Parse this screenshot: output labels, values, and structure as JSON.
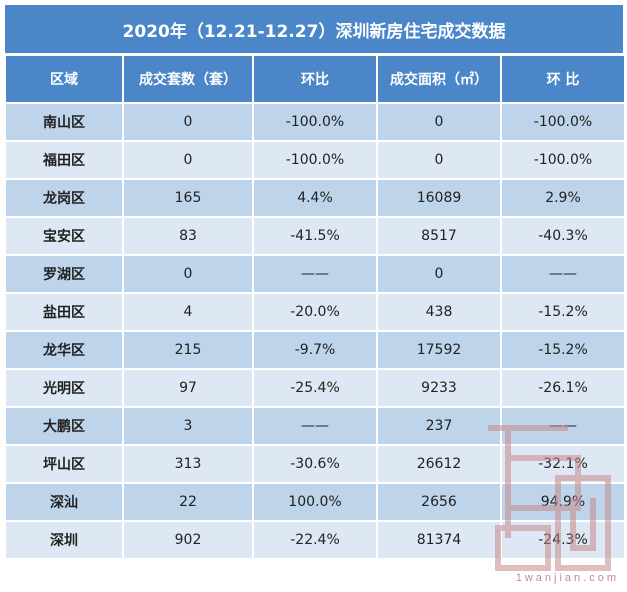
{
  "title": "2020年（12.21-12.27）深圳新房住宅成交数据",
  "columns": [
    "区域",
    "成交套数（套）",
    "环比",
    "成交面积（㎡）",
    "环 比"
  ],
  "rows": [
    [
      "南山区",
      "0",
      "-100.0%",
      "0",
      "-100.0%"
    ],
    [
      "福田区",
      "0",
      "-100.0%",
      "0",
      "-100.0%"
    ],
    [
      "龙岗区",
      "165",
      "4.4%",
      "16089",
      "2.9%"
    ],
    [
      "宝安区",
      "83",
      "-41.5%",
      "8517",
      "-40.3%"
    ],
    [
      "罗湖区",
      "0",
      "——",
      "0",
      "——"
    ],
    [
      "盐田区",
      "4",
      "-20.0%",
      "438",
      "-15.2%"
    ],
    [
      "龙华区",
      "215",
      "-9.7%",
      "17592",
      "-15.2%"
    ],
    [
      "光明区",
      "97",
      "-25.4%",
      "9233",
      "-26.1%"
    ],
    [
      "大鹏区",
      "3",
      "——",
      "237",
      "——"
    ],
    [
      "坪山区",
      "313",
      "-30.6%",
      "26612",
      "-32.1%"
    ],
    [
      "深汕",
      "22",
      "100.0%",
      "2656",
      "94.9%"
    ],
    [
      "深圳",
      "902",
      "-22.4%",
      "81374",
      "-24.3%"
    ]
  ],
  "watermark": "1wanjian.com",
  "colors": {
    "header": "#4a86c8",
    "row_dark": "#bdd4ea",
    "row_light": "#dde8f4",
    "watermark": "#c98a8a"
  }
}
